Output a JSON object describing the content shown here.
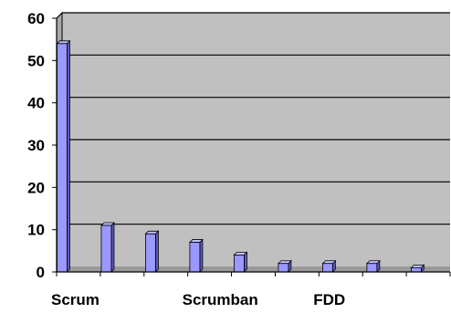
{
  "chart_data": {
    "type": "bar",
    "style": "3d-column",
    "title": "",
    "xlabel": "",
    "ylabel": "",
    "ylim": [
      0,
      60
    ],
    "yticks": [
      0,
      10,
      20,
      30,
      40,
      50,
      60
    ],
    "grid": true,
    "legend": "none",
    "categories": [
      "Scrum",
      "",
      "",
      "Scrumban",
      "",
      "",
      "FDD",
      "",
      ""
    ],
    "series": [
      {
        "values": [
          54,
          11,
          9,
          7,
          4,
          2,
          2,
          2,
          1
        ]
      }
    ]
  },
  "colors": {
    "plot_background": "#c0c0c0",
    "bar_front": "#9999ff",
    "bar_side": "#5c5cbf",
    "bar_top": "#c2c2ff",
    "gridline": "#000000",
    "axis": "#000000"
  }
}
